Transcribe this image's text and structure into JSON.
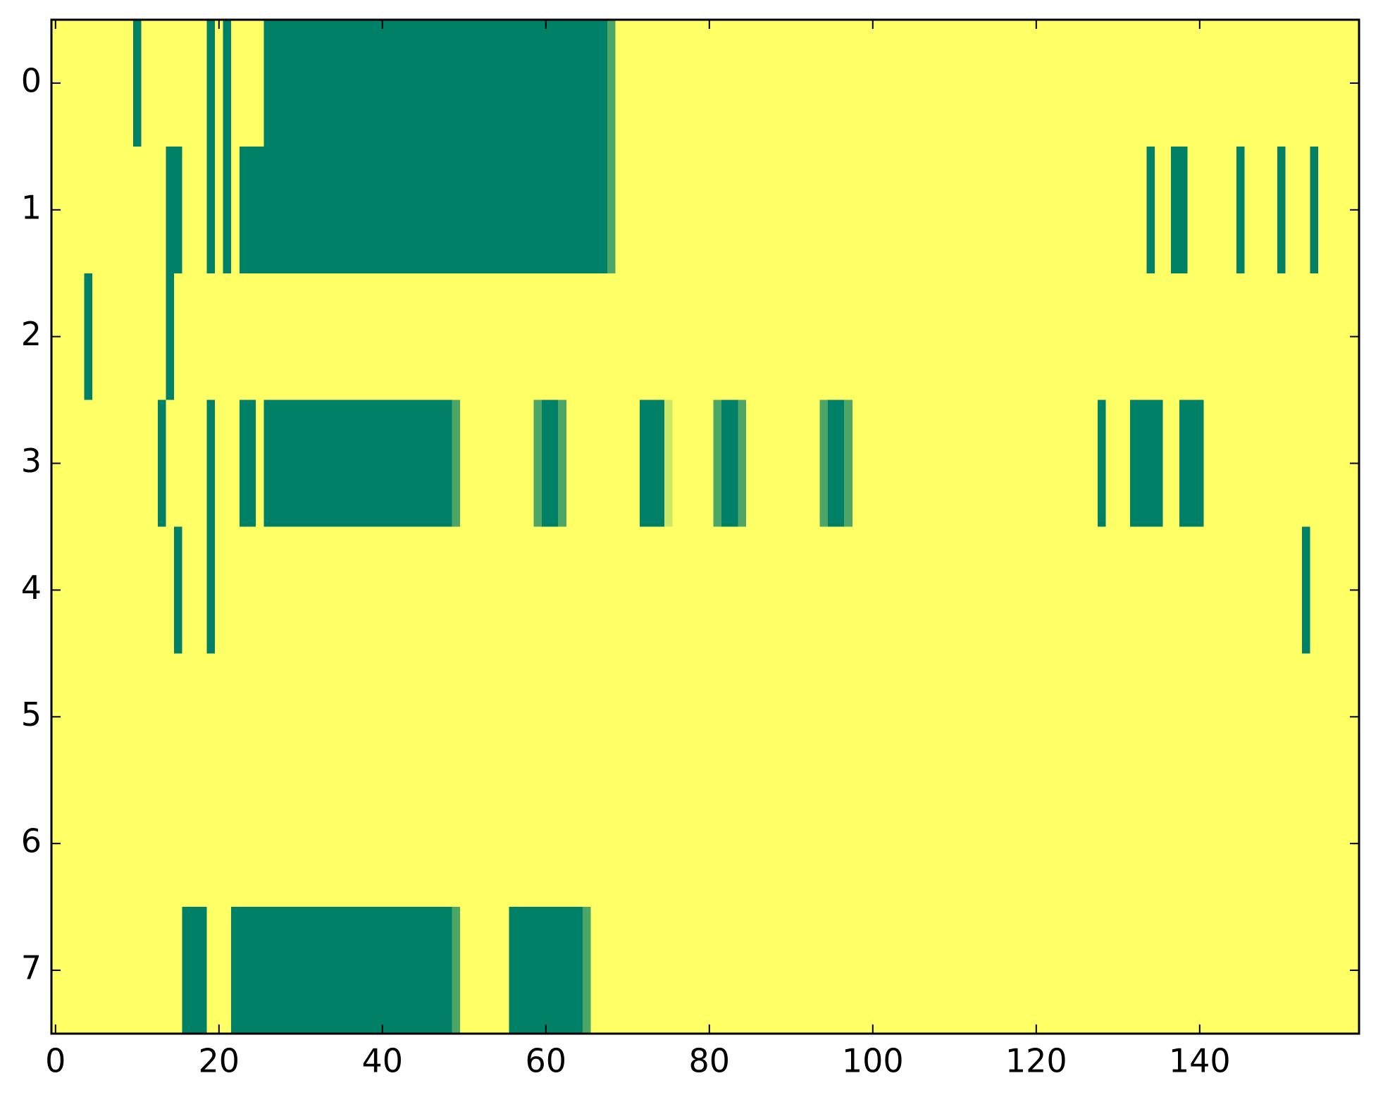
{
  "chart_data": {
    "type": "heatmap",
    "xlim": [
      -0.5,
      159.5
    ],
    "ylim": [
      7.5,
      -0.5
    ],
    "xticks": [
      0,
      20,
      40,
      60,
      80,
      100,
      120,
      140
    ],
    "yticks": [
      0,
      1,
      2,
      3,
      4,
      5,
      6,
      7
    ],
    "zlim": [
      0,
      1
    ],
    "low_color": "#008066",
    "high_color": "#ffff66",
    "z": [
      [
        1,
        1,
        1,
        1,
        1,
        1,
        1,
        1,
        1,
        1,
        0,
        1,
        1,
        1,
        1,
        1,
        1,
        1,
        1,
        0,
        1,
        0,
        1,
        1,
        1,
        1,
        0,
        0,
        0,
        0,
        0,
        0,
        0,
        0,
        0,
        0,
        0,
        0,
        0,
        0,
        0,
        0,
        0,
        0,
        0,
        0,
        0,
        0,
        0,
        0,
        0,
        0,
        0,
        0,
        0,
        0,
        0,
        0,
        0,
        0,
        0,
        0,
        0,
        0,
        0,
        0,
        0,
        0,
        0.3,
        1,
        1,
        1,
        1,
        1,
        1,
        1,
        1,
        1,
        1,
        1,
        1,
        1,
        1,
        1,
        1,
        1,
        1,
        1,
        1,
        1,
        1,
        1,
        1,
        1,
        1,
        1,
        1,
        1,
        1,
        1,
        1,
        1,
        1,
        1,
        1,
        1,
        1,
        1,
        1,
        1,
        1,
        1,
        1,
        1,
        1,
        1,
        1,
        1,
        1,
        1,
        1,
        1,
        1,
        1,
        1,
        1,
        1,
        1,
        1,
        1,
        1,
        1,
        1,
        1,
        1,
        1,
        1,
        1,
        1,
        1,
        1,
        1,
        1,
        1,
        1,
        1,
        1,
        1,
        1,
        1,
        1,
        1,
        1,
        1,
        1,
        1,
        1,
        1,
        1,
        1
      ],
      [
        1,
        1,
        1,
        1,
        1,
        1,
        1,
        1,
        1,
        1,
        1,
        1,
        1,
        1,
        0,
        0,
        1,
        1,
        1,
        0,
        1,
        0,
        1,
        0,
        0,
        0,
        0,
        0,
        0,
        0,
        0,
        0,
        0,
        0,
        0,
        0,
        0,
        0,
        0,
        0,
        0,
        0,
        0,
        0,
        0,
        0,
        0,
        0,
        0,
        0,
        0,
        0,
        0,
        0,
        0,
        0,
        0,
        0,
        0,
        0,
        0,
        0,
        0,
        0,
        0,
        0,
        0,
        0,
        0.3,
        1,
        1,
        1,
        1,
        1,
        1,
        1,
        1,
        1,
        1,
        1,
        1,
        1,
        1,
        1,
        1,
        1,
        1,
        1,
        1,
        1,
        1,
        1,
        1,
        1,
        1,
        1,
        1,
        1,
        1,
        1,
        1,
        1,
        1,
        1,
        1,
        1,
        1,
        1,
        1,
        1,
        1,
        1,
        1,
        1,
        1,
        1,
        1,
        1,
        1,
        1,
        1,
        1,
        1,
        1,
        1,
        1,
        1,
        1,
        1,
        1,
        1,
        1,
        1,
        1,
        0,
        1,
        1,
        0,
        0,
        1,
        1,
        1,
        1,
        1,
        1,
        0,
        1,
        1,
        1,
        1,
        0,
        1,
        1,
        1,
        0,
        1,
        1,
        1,
        1,
        1
      ],
      [
        1,
        1,
        1,
        1,
        0,
        1,
        1,
        1,
        1,
        1,
        1,
        1,
        1,
        1,
        0,
        1,
        1,
        1,
        1,
        1,
        1,
        1,
        1,
        1,
        1,
        1,
        1,
        1,
        1,
        1,
        1,
        1,
        1,
        1,
        1,
        1,
        1,
        1,
        1,
        1,
        1,
        1,
        1,
        1,
        1,
        1,
        1,
        1,
        1,
        1,
        1,
        1,
        1,
        1,
        1,
        1,
        1,
        1,
        1,
        1,
        1,
        1,
        1,
        1,
        1,
        1,
        1,
        1,
        1,
        1,
        1,
        1,
        1,
        1,
        1,
        1,
        1,
        1,
        1,
        1,
        1,
        1,
        1,
        1,
        1,
        1,
        1,
        1,
        1,
        1,
        1,
        1,
        1,
        1,
        1,
        1,
        1,
        1,
        1,
        1,
        1,
        1,
        1,
        1,
        1,
        1,
        1,
        1,
        1,
        1,
        1,
        1,
        1,
        1,
        1,
        1,
        1,
        1,
        1,
        1,
        1,
        1,
        1,
        1,
        1,
        1,
        1,
        1,
        1,
        1,
        1,
        1,
        1,
        1,
        1,
        1,
        1,
        1,
        1,
        1,
        1,
        1,
        1,
        1,
        1,
        1,
        1,
        1,
        1,
        1,
        1,
        1,
        1,
        1,
        1,
        1,
        1,
        1,
        1,
        1
      ],
      [
        1,
        1,
        1,
        1,
        1,
        1,
        1,
        1,
        1,
        1,
        1,
        1,
        1,
        0,
        1,
        1,
        1,
        1,
        1,
        0,
        1,
        1,
        1,
        0,
        0,
        1,
        0,
        0,
        0,
        0,
        0,
        0,
        0,
        0,
        0,
        0,
        0,
        0,
        0,
        0,
        0,
        0,
        0,
        0,
        0,
        0,
        0,
        0,
        0,
        0.3,
        1,
        1,
        1,
        1,
        1,
        1,
        1,
        1,
        1,
        0.3,
        0,
        0,
        0.3,
        1,
        1,
        1,
        1,
        1,
        1,
        1,
        1,
        1,
        0,
        0,
        0,
        0.8,
        1,
        1,
        1,
        1,
        1,
        0.3,
        0,
        0,
        0.3,
        1,
        1,
        1,
        1,
        1,
        1,
        1,
        1,
        1,
        0.3,
        0,
        0,
        0.3,
        1,
        1,
        1,
        1,
        1,
        1,
        1,
        1,
        1,
        1,
        1,
        1,
        1,
        1,
        1,
        1,
        1,
        1,
        1,
        1,
        1,
        1,
        1,
        1,
        1,
        1,
        1,
        1,
        1,
        1,
        0,
        1,
        1,
        1,
        0,
        0,
        0,
        0,
        1,
        1,
        0,
        0,
        0,
        1,
        1,
        1,
        1,
        1,
        1,
        1,
        1,
        1,
        1,
        1,
        1,
        1,
        1,
        1,
        1,
        1,
        1,
        1
      ],
      [
        1,
        1,
        1,
        1,
        1,
        1,
        1,
        1,
        1,
        1,
        1,
        1,
        1,
        1,
        1,
        0,
        1,
        1,
        1,
        0,
        1,
        1,
        1,
        1,
        1,
        1,
        1,
        1,
        1,
        1,
        1,
        1,
        1,
        1,
        1,
        1,
        1,
        1,
        1,
        1,
        1,
        1,
        1,
        1,
        1,
        1,
        1,
        1,
        1,
        1,
        1,
        1,
        1,
        1,
        1,
        1,
        1,
        1,
        1,
        1,
        1,
        1,
        1,
        1,
        1,
        1,
        1,
        1,
        1,
        1,
        1,
        1,
        1,
        1,
        1,
        1,
        1,
        1,
        1,
        1,
        1,
        1,
        1,
        1,
        1,
        1,
        1,
        1,
        1,
        1,
        1,
        1,
        1,
        1,
        1,
        1,
        1,
        1,
        1,
        1,
        1,
        1,
        1,
        1,
        1,
        1,
        1,
        1,
        1,
        1,
        1,
        1,
        1,
        1,
        1,
        1,
        1,
        1,
        1,
        1,
        1,
        1,
        1,
        1,
        1,
        1,
        1,
        1,
        1,
        1,
        1,
        1,
        1,
        1,
        1,
        1,
        1,
        1,
        1,
        1,
        1,
        1,
        1,
        1,
        1,
        1,
        1,
        1,
        1,
        1,
        1,
        1,
        1,
        0,
        1,
        1,
        1,
        1,
        1,
        1
      ],
      [
        1,
        1,
        1,
        1,
        1,
        1,
        1,
        1,
        1,
        1,
        1,
        1,
        1,
        1,
        1,
        1,
        1,
        1,
        1,
        1,
        1,
        1,
        1,
        1,
        1,
        1,
        1,
        1,
        1,
        1,
        1,
        1,
        1,
        1,
        1,
        1,
        1,
        1,
        1,
        1,
        1,
        1,
        1,
        1,
        1,
        1,
        1,
        1,
        1,
        1,
        1,
        1,
        1,
        1,
        1,
        1,
        1,
        1,
        1,
        1,
        1,
        1,
        1,
        1,
        1,
        1,
        1,
        1,
        1,
        1,
        1,
        1,
        1,
        1,
        1,
        1,
        1,
        1,
        1,
        1,
        1,
        1,
        1,
        1,
        1,
        1,
        1,
        1,
        1,
        1,
        1,
        1,
        1,
        1,
        1,
        1,
        1,
        1,
        1,
        1,
        1,
        1,
        1,
        1,
        1,
        1,
        1,
        1,
        1,
        1,
        1,
        1,
        1,
        1,
        1,
        1,
        1,
        1,
        1,
        1,
        1,
        1,
        1,
        1,
        1,
        1,
        1,
        1,
        1,
        1,
        1,
        1,
        1,
        1,
        1,
        1,
        1,
        1,
        1,
        1,
        1,
        1,
        1,
        1,
        1,
        1,
        1,
        1,
        1,
        1,
        1,
        1,
        1,
        1,
        1,
        1,
        1,
        1,
        1,
        1
      ],
      [
        1,
        1,
        1,
        1,
        1,
        1,
        1,
        1,
        1,
        1,
        1,
        1,
        1,
        1,
        1,
        1,
        1,
        1,
        1,
        1,
        1,
        1,
        1,
        1,
        1,
        1,
        1,
        1,
        1,
        1,
        1,
        1,
        1,
        1,
        1,
        1,
        1,
        1,
        1,
        1,
        1,
        1,
        1,
        1,
        1,
        1,
        1,
        1,
        1,
        1,
        1,
        1,
        1,
        1,
        1,
        1,
        1,
        1,
        1,
        1,
        1,
        1,
        1,
        1,
        1,
        1,
        1,
        1,
        1,
        1,
        1,
        1,
        1,
        1,
        1,
        1,
        1,
        1,
        1,
        1,
        1,
        1,
        1,
        1,
        1,
        1,
        1,
        1,
        1,
        1,
        1,
        1,
        1,
        1,
        1,
        1,
        1,
        1,
        1,
        1,
        1,
        1,
        1,
        1,
        1,
        1,
        1,
        1,
        1,
        1,
        1,
        1,
        1,
        1,
        1,
        1,
        1,
        1,
        1,
        1,
        1,
        1,
        1,
        1,
        1,
        1,
        1,
        1,
        1,
        1,
        1,
        1,
        1,
        1,
        1,
        1,
        1,
        1,
        1,
        1,
        1,
        1,
        1,
        1,
        1,
        1,
        1,
        1,
        1,
        1,
        1,
        1,
        1,
        1,
        1,
        1,
        1,
        1,
        1,
        1
      ],
      [
        1,
        1,
        1,
        1,
        1,
        1,
        1,
        1,
        1,
        1,
        1,
        1,
        1,
        1,
        1,
        1,
        0,
        0,
        0,
        1,
        1,
        1,
        0,
        0,
        0,
        0,
        0,
        0,
        0,
        0,
        0,
        0,
        0,
        0,
        0,
        0,
        0,
        0,
        0,
        0,
        0,
        0,
        0,
        0,
        0,
        0,
        0,
        0,
        0,
        0.3,
        1,
        1,
        1,
        1,
        1,
        1,
        0,
        0,
        0,
        0,
        0,
        0,
        0,
        0,
        0,
        0.3,
        1,
        1,
        1,
        1,
        1,
        1,
        1,
        1,
        1,
        1,
        1,
        1,
        1,
        1,
        1,
        1,
        1,
        1,
        1,
        1,
        1,
        1,
        1,
        1,
        1,
        1,
        1,
        1,
        1,
        1,
        1,
        1,
        1,
        1,
        1,
        1,
        1,
        1,
        1,
        1,
        1,
        1,
        1,
        1,
        1,
        1,
        1,
        1,
        1,
        1,
        1,
        1,
        1,
        1,
        1,
        1,
        1,
        1,
        1,
        1,
        1,
        1,
        1,
        1,
        1,
        1,
        1,
        1,
        1,
        1,
        1,
        1,
        1,
        1,
        1,
        1,
        1,
        1,
        1,
        1,
        1,
        1,
        1,
        1,
        1,
        1,
        1,
        1,
        1,
        1,
        1,
        1,
        1,
        1
      ]
    ]
  }
}
